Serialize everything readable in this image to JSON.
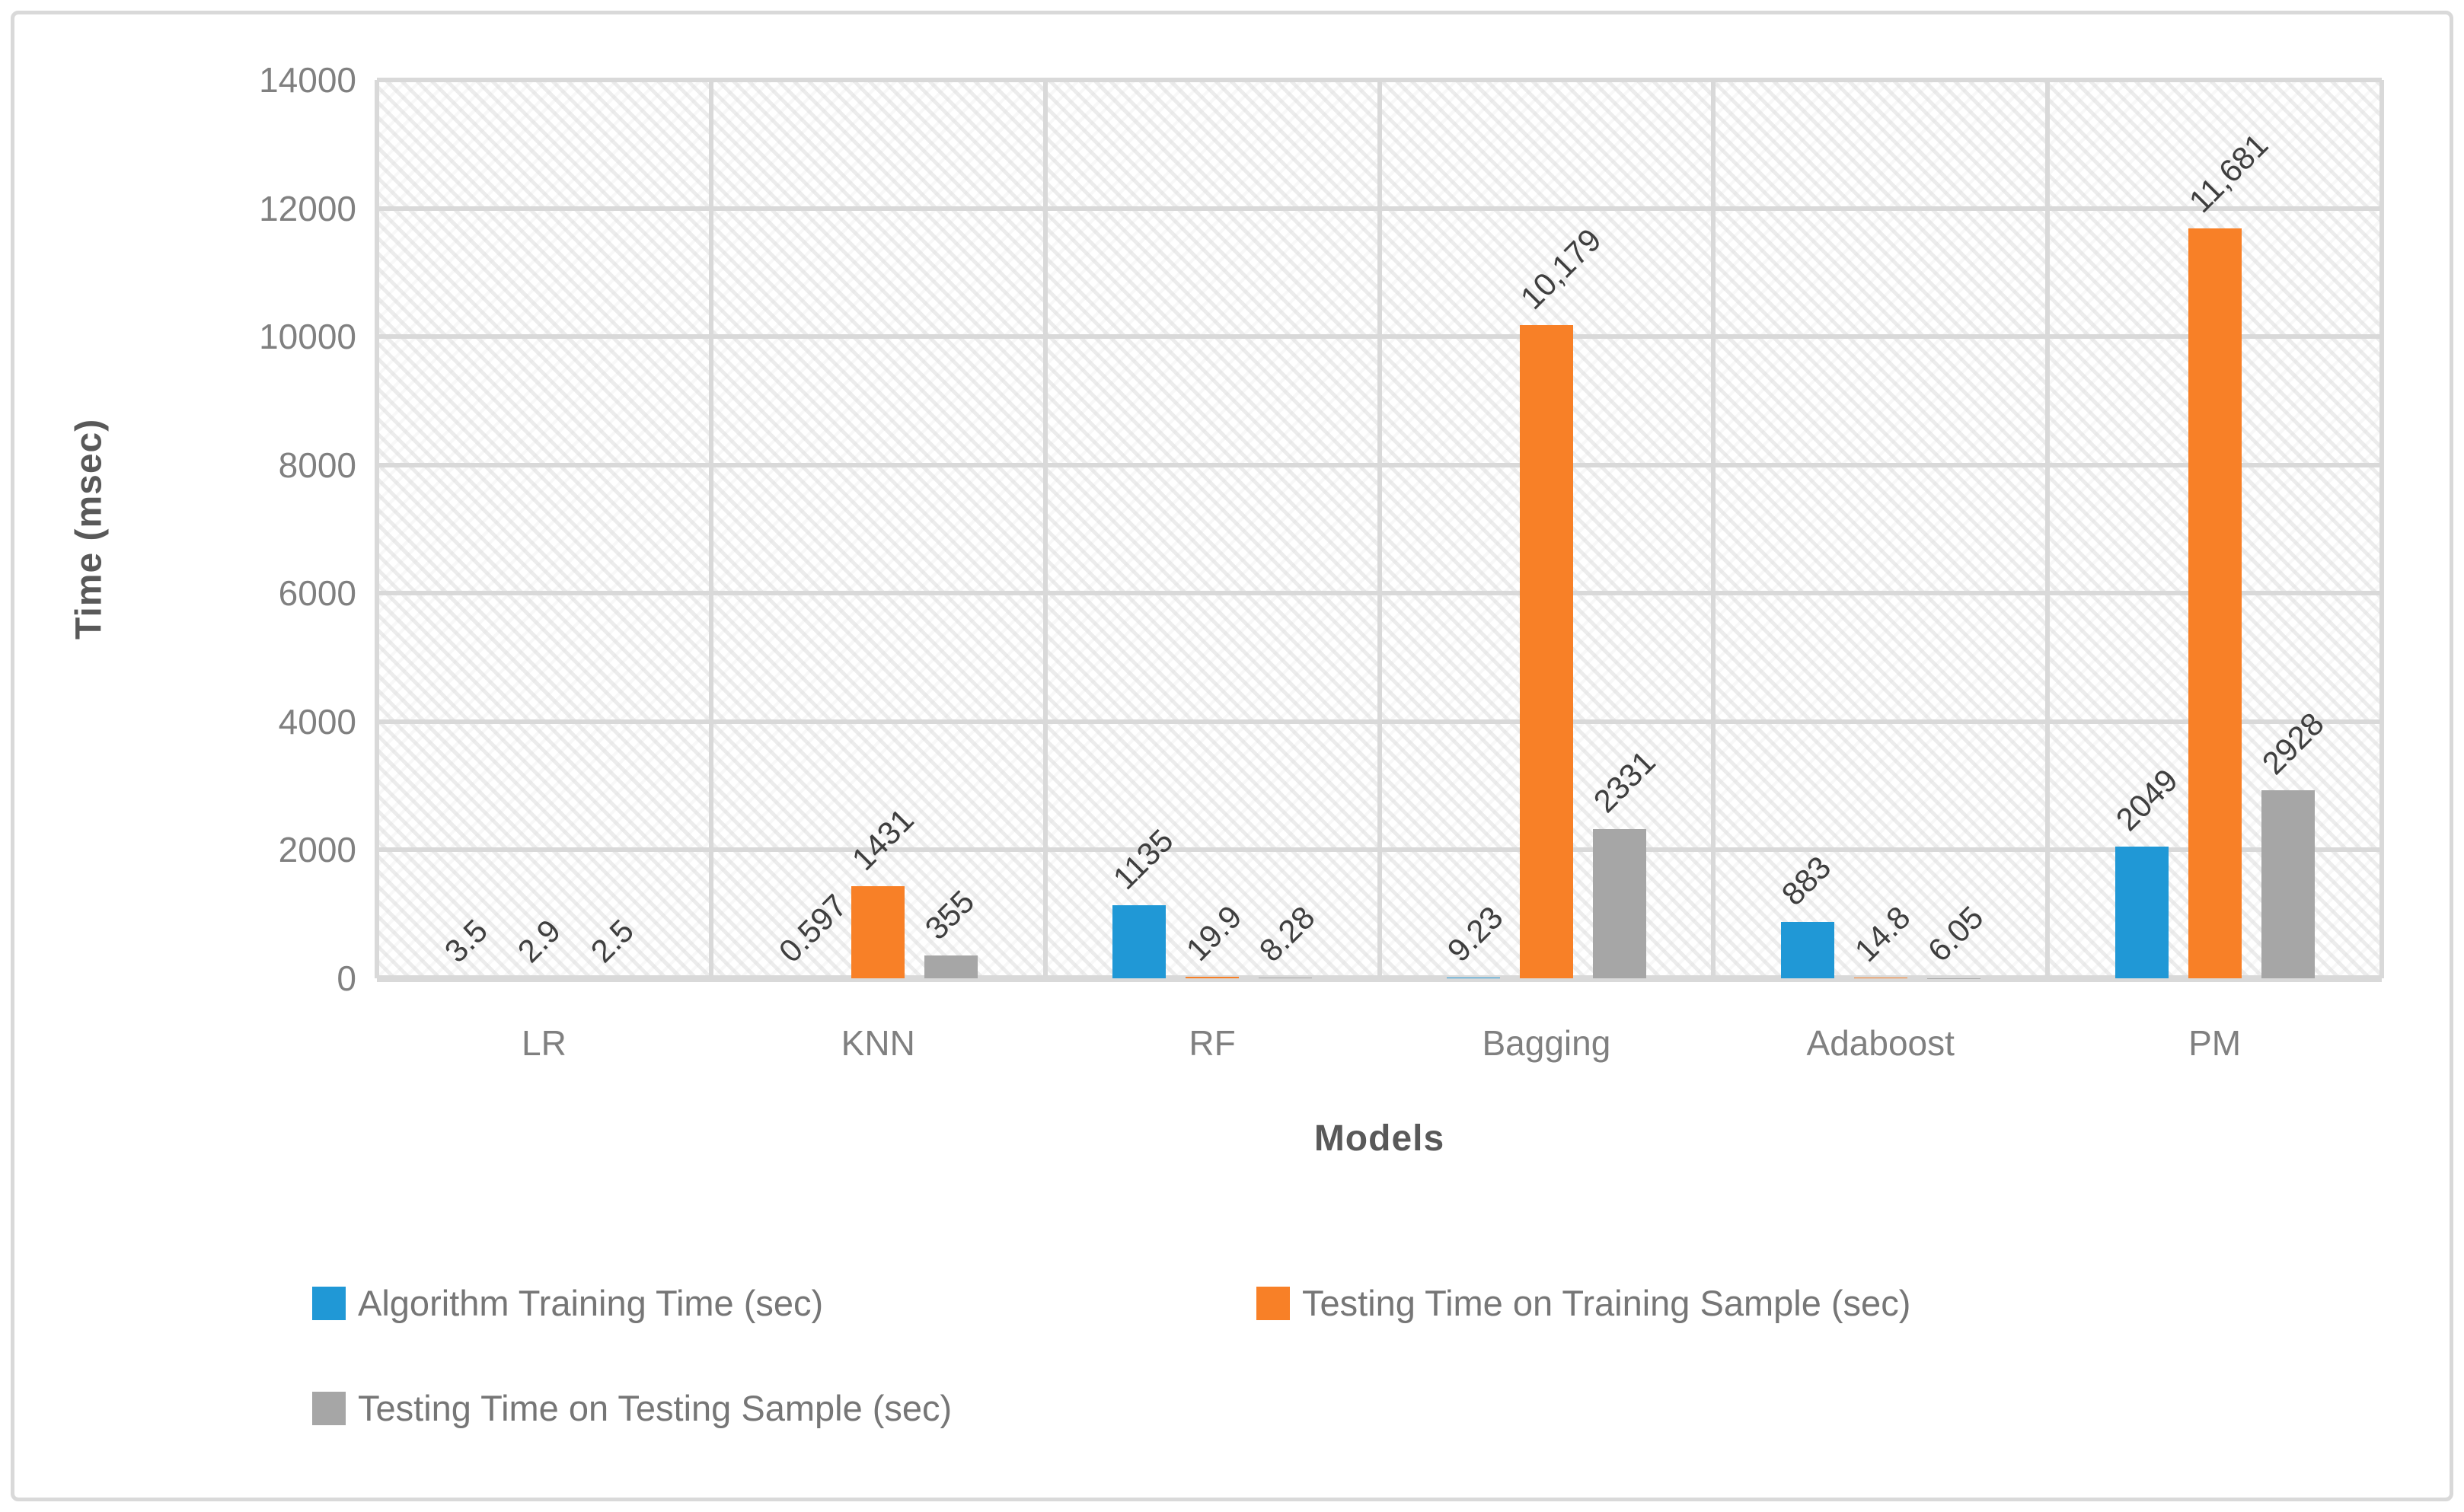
{
  "chart_data": {
    "type": "bar",
    "title": "",
    "xlabel": "Models",
    "ylabel": "Time (msec)",
    "ylim": [
      0,
      14000
    ],
    "yticks": [
      0,
      2000,
      4000,
      6000,
      8000,
      10000,
      12000,
      14000
    ],
    "ytick_labels": [
      "0",
      "2000",
      "4000",
      "6000",
      "8000",
      "10000",
      "12000",
      "14000"
    ],
    "grid": "major horizontal and vertical gridlines, light gray; plot area has light diagonal hatch pattern fill",
    "legend_position": "bottom",
    "categories": [
      "LR",
      "KNN",
      "RF",
      "Bagging",
      "Adaboost",
      "PM"
    ],
    "series": [
      {
        "name": "Algorithm Training Time (sec)",
        "color": "#2098D6",
        "values": [
          3.5,
          0.597,
          1135,
          9.23,
          883,
          2049
        ],
        "data_labels": [
          "3.5",
          "0.597",
          "1135",
          "9.23",
          "883",
          "2049"
        ]
      },
      {
        "name": "Testing Time on Training Sample (sec)",
        "color": "#F88027",
        "values": [
          2.9,
          1431,
          19.9,
          10179,
          14.8,
          11681
        ],
        "data_labels": [
          "2.9",
          "1431",
          "19.9",
          "10,179",
          "14.8",
          "11,681"
        ]
      },
      {
        "name": "Testing Time on Testing Sample (sec)",
        "color": "#A6A6A6",
        "values": [
          2.5,
          355,
          8.28,
          2331,
          6.05,
          2928
        ],
        "data_labels": [
          "2.5",
          "355",
          "8.28",
          "2331",
          "6.05",
          "2928"
        ]
      }
    ]
  },
  "style": {
    "grid_color": "#D9D9D9",
    "tick_text_color": "#808080",
    "axis_title_color": "#595959",
    "data_label_color": "#3F3F3F",
    "legend_text_color": "#767676",
    "border_color": "#D9D9D9",
    "background": "#FFFFFF"
  }
}
